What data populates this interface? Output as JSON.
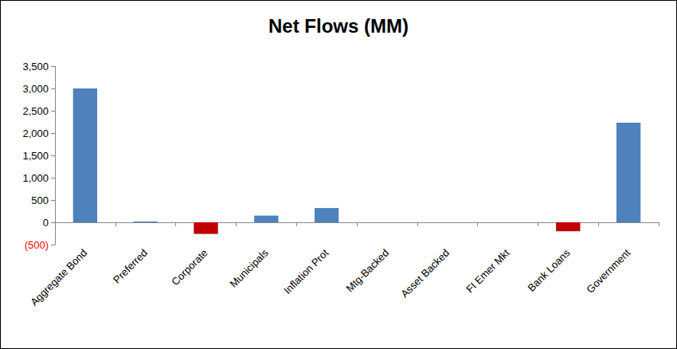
{
  "chart_data": {
    "type": "bar",
    "title": "Net Flows (MM)",
    "categories": [
      "Aggregate Bond",
      "Preferred",
      "Corporate",
      "Municipals",
      "Inflation Prot",
      "Mtg-Backed",
      "Asset Backed",
      "FI Emer Mkt",
      "Bank Loans",
      "Government"
    ],
    "values": [
      3000,
      20,
      -260,
      150,
      320,
      0,
      0,
      0,
      -200,
      2230
    ],
    "colors": [
      "#4f81bd",
      "#4f81bd",
      "#c00000",
      "#4f81bd",
      "#4f81bd",
      "#4f81bd",
      "#4f81bd",
      "#4f81bd",
      "#c00000",
      "#4f81bd"
    ],
    "ylim": [
      -500,
      3500
    ],
    "yticks": [
      {
        "value": -500,
        "label": "(500)"
      },
      0,
      500,
      {
        "value": 1000,
        "label": "1,000"
      },
      {
        "value": 1500,
        "label": "1,500"
      },
      {
        "value": 2000,
        "label": "2,000"
      },
      {
        "value": 2500,
        "label": "2,500"
      },
      {
        "value": 3000,
        "label": "3,000"
      },
      {
        "value": 3500,
        "label": "3,500"
      }
    ],
    "grid": false
  }
}
